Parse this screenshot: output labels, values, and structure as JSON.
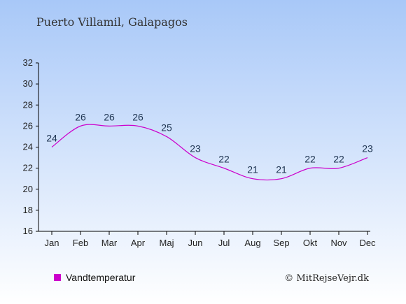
{
  "chart_data": {
    "type": "line",
    "title": "Puerto Villamil, Galapagos",
    "xlabel": "",
    "ylabel": "",
    "categories": [
      "Jan",
      "Feb",
      "Mar",
      "Apr",
      "Maj",
      "Jun",
      "Jul",
      "Aug",
      "Sep",
      "Okt",
      "Nov",
      "Dec"
    ],
    "series": [
      {
        "name": "Vandtemperatur",
        "values": [
          24,
          26,
          26,
          26,
          25,
          23,
          22,
          21,
          21,
          22,
          22,
          23
        ],
        "color": "#cc00cc"
      }
    ],
    "yticks": [
      16,
      18,
      20,
      22,
      24,
      26,
      28,
      30,
      32
    ],
    "ylim": [
      16,
      32
    ],
    "grid": false,
    "legend": "bottom-left",
    "credit": "© MitRejseVejr.dk",
    "background_top": "#a8c8f8",
    "background_bottom": "#ffffff"
  }
}
